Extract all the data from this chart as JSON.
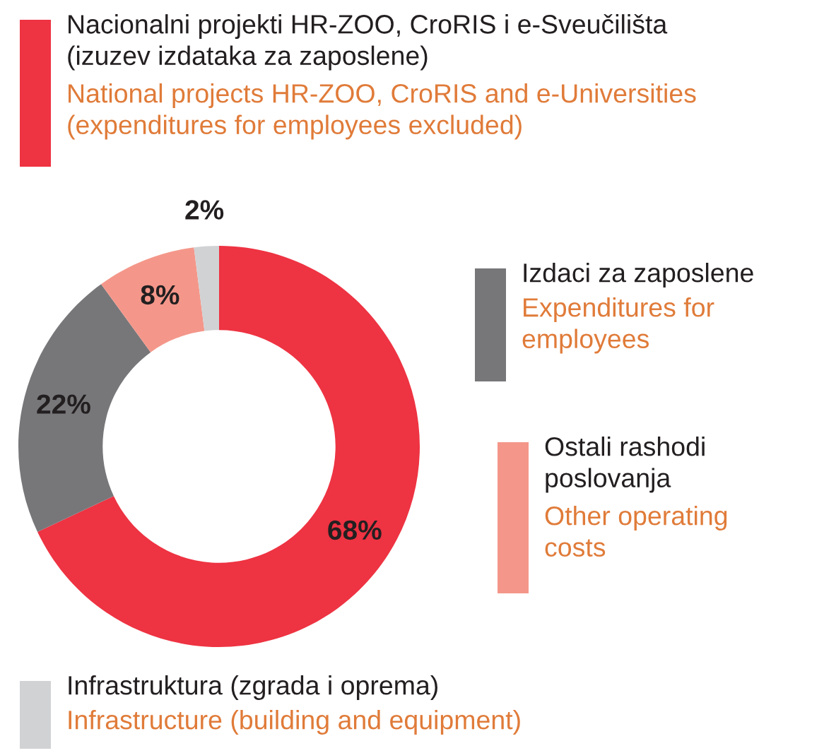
{
  "chart_data": {
    "type": "donut",
    "categories": [
      "Nacionalni projekti HR-ZOO, CroRIS i e-Sveučilišta\n(izuzev izdataka za zaposlene)",
      "Izdaci za zaposlene",
      "Ostali rashodi\nposlovanja",
      "Infrastruktura (zgrada i oprema)"
    ],
    "annotations": [
      "National projects HR-ZOO, CroRIS and e-Universities\n(expenditures for employees excluded)",
      "Expenditures for\nemployees",
      "Other operating\ncosts",
      "Infrastructure (building and equipment)"
    ],
    "values": [
      68,
      22,
      8,
      2
    ],
    "colors": [
      "#ee3342",
      "#77777a",
      "#f4978a",
      "#d1d2d4"
    ],
    "value_labels": [
      "68%",
      "22%",
      "8%",
      "2%"
    ],
    "legend": "right"
  }
}
